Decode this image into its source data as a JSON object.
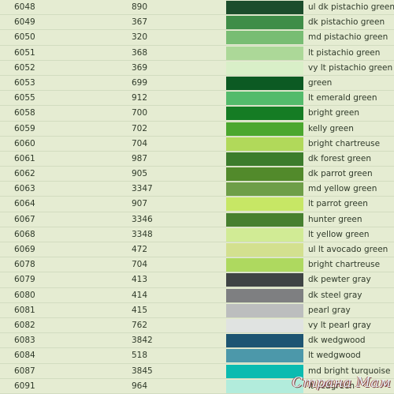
{
  "rows": [
    {
      "code": "6048",
      "dmc": "890",
      "color": "#1c4d2c",
      "name": "ul dk pistachio green"
    },
    {
      "code": "6049",
      "dmc": "367",
      "color": "#3f8d48",
      "name": "dk pistachio green"
    },
    {
      "code": "6050",
      "dmc": "320",
      "color": "#78bd73",
      "name": "md pistachio green"
    },
    {
      "code": "6051",
      "dmc": "368",
      "color": "#acd898",
      "name": "lt pistachio green"
    },
    {
      "code": "6052",
      "dmc": "369",
      "color": "#d9efc8",
      "name": "vy lt pistachio green"
    },
    {
      "code": "6053",
      "dmc": "699",
      "color": "#0c5a23",
      "name": "green"
    },
    {
      "code": "6055",
      "dmc": "912",
      "color": "#53bb6b",
      "name": "lt emerald green"
    },
    {
      "code": "6058",
      "dmc": "700",
      "color": "#157c24",
      "name": "bright green"
    },
    {
      "code": "6059",
      "dmc": "702",
      "color": "#4ba72e",
      "name": "kelly green"
    },
    {
      "code": "6060",
      "dmc": "704",
      "color": "#b1d95a",
      "name": "bright chartreuse"
    },
    {
      "code": "6061",
      "dmc": "987",
      "color": "#3c7c2c",
      "name": "dk forest green"
    },
    {
      "code": "6062",
      "dmc": "905",
      "color": "#528a2b",
      "name": "dk parrot green"
    },
    {
      "code": "6063",
      "dmc": "3347",
      "color": "#6e9e48",
      "name": "md yellow green"
    },
    {
      "code": "6064",
      "dmc": "907",
      "color": "#c7e765",
      "name": "lt parrot green"
    },
    {
      "code": "6067",
      "dmc": "3346",
      "color": "#47802f",
      "name": "hunter green"
    },
    {
      "code": "6068",
      "dmc": "3348",
      "color": "#d1eb95",
      "name": "lt yellow green"
    },
    {
      "code": "6069",
      "dmc": "472",
      "color": "#d3e08f",
      "name": "ul lt avocado green"
    },
    {
      "code": "6078",
      "dmc": "704",
      "color": "#aed95f",
      "name": "bright chartreuse"
    },
    {
      "code": "6079",
      "dmc": "413",
      "color": "#3f4444",
      "name": "dk pewter gray"
    },
    {
      "code": "6080",
      "dmc": "414",
      "color": "#7e7f81",
      "name": "dk steel gray"
    },
    {
      "code": "6081",
      "dmc": "415",
      "color": "#bcbebe",
      "name": "pearl gray"
    },
    {
      "code": "6082",
      "dmc": "762",
      "color": "#e0e3e1",
      "name": "vy lt pearl gray"
    },
    {
      "code": "6083",
      "dmc": "3842",
      "color": "#1d5572",
      "name": "dk wedgwood"
    },
    {
      "code": "6084",
      "dmc": "518",
      "color": "#4c98aa",
      "name": "lt wedgwood"
    },
    {
      "code": "6087",
      "dmc": "3845",
      "color": "#0bbbb0",
      "name": "md bright turquoise"
    },
    {
      "code": "6091",
      "dmc": "964",
      "color": "#b2ecdc",
      "name": "lt seagreen"
    }
  ],
  "watermark": "Страна Мам"
}
